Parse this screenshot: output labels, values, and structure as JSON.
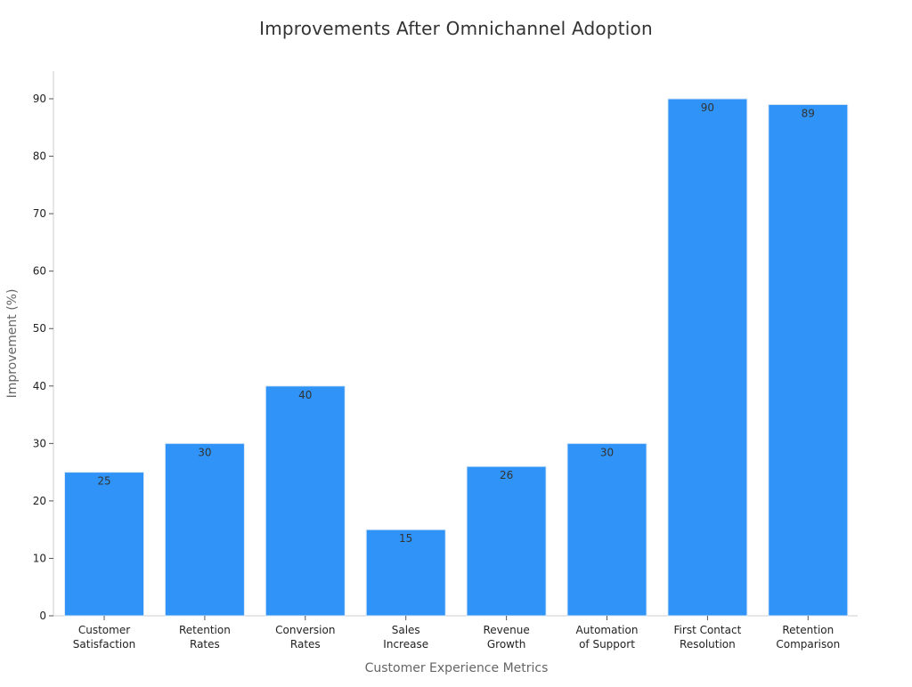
{
  "chart_data": {
    "type": "bar",
    "title": "Improvements After Omnichannel Adoption",
    "xlabel": "Customer Experience Metrics",
    "ylabel": "Improvement (%)",
    "categories": [
      [
        "Customer",
        "Satisfaction"
      ],
      [
        "Retention",
        "Rates"
      ],
      [
        "Conversion",
        "Rates"
      ],
      [
        "Sales",
        "Increase"
      ],
      [
        "Revenue",
        "Growth"
      ],
      [
        "Automation",
        "of Support"
      ],
      [
        "First Contact",
        "Resolution"
      ],
      [
        "Retention",
        "Comparison"
      ]
    ],
    "values": [
      25,
      30,
      40,
      15,
      26,
      30,
      90,
      89
    ],
    "ylim": [
      0,
      95
    ],
    "yticks": [
      0,
      10,
      20,
      30,
      40,
      50,
      60,
      70,
      80,
      90
    ],
    "bar_color": "#2f93f7",
    "bar_edge_color": "#dbe9f7",
    "axis_color": "#cccccc",
    "grid": false,
    "legend": "none"
  }
}
